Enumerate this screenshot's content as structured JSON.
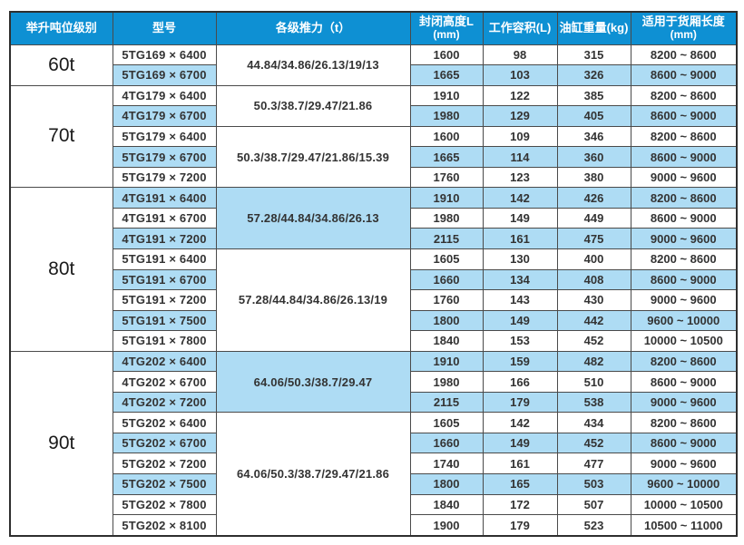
{
  "colors": {
    "header_bg": "#0e90d3",
    "row_highlight": "#aedcf4",
    "border": "#4a4a4a",
    "text": "#333333"
  },
  "table": {
    "headers": [
      {
        "label": "举升吨位级别",
        "sub": ""
      },
      {
        "label": "型号",
        "sub": ""
      },
      {
        "label": "各级推力（t）",
        "sub": ""
      },
      {
        "label": "封闭高度L",
        "sub": "(mm)"
      },
      {
        "label": "工作容积(L)",
        "sub": ""
      },
      {
        "label": "油缸重量(kg)",
        "sub": ""
      },
      {
        "label": "适用于货厢长度",
        "sub": "(mm)"
      }
    ],
    "groups": [
      {
        "tonnage": "60t",
        "subgroups": [
          {
            "thrust": "44.84/34.86/26.13/19/13",
            "thrust_shaded": false,
            "rows": [
              {
                "model": "5TG169 × 6400",
                "closed_height": "1600",
                "volume": "98",
                "weight": "315",
                "box_length": "8200 ~ 8600",
                "shaded": false
              },
              {
                "model": "5TG169 × 6700",
                "closed_height": "1665",
                "volume": "103",
                "weight": "326",
                "box_length": "8600 ~ 9000",
                "shaded": true
              }
            ]
          }
        ]
      },
      {
        "tonnage": "70t",
        "subgroups": [
          {
            "thrust": "50.3/38.7/29.47/21.86",
            "thrust_shaded": false,
            "rows": [
              {
                "model": "4TG179 × 6400",
                "closed_height": "1910",
                "volume": "122",
                "weight": "385",
                "box_length": "8200 ~ 8600",
                "shaded": false
              },
              {
                "model": "4TG179 × 6700",
                "closed_height": "1980",
                "volume": "129",
                "weight": "405",
                "box_length": "8600 ~ 9000",
                "shaded": true
              }
            ]
          },
          {
            "thrust": "50.3/38.7/29.47/21.86/15.39",
            "thrust_shaded": false,
            "rows": [
              {
                "model": "5TG179 × 6400",
                "closed_height": "1600",
                "volume": "109",
                "weight": "346",
                "box_length": "8200 ~ 8600",
                "shaded": false
              },
              {
                "model": "5TG179 × 6700",
                "closed_height": "1665",
                "volume": "114",
                "weight": "360",
                "box_length": "8600 ~ 9000",
                "shaded": true
              },
              {
                "model": "5TG179 × 7200",
                "closed_height": "1760",
                "volume": "123",
                "weight": "380",
                "box_length": "9000 ~ 9600",
                "shaded": false
              }
            ]
          }
        ]
      },
      {
        "tonnage": "80t",
        "subgroups": [
          {
            "thrust": "57.28/44.84/34.86/26.13",
            "thrust_shaded": true,
            "rows": [
              {
                "model": "4TG191 × 6400",
                "closed_height": "1910",
                "volume": "142",
                "weight": "426",
                "box_length": "8200 ~ 8600",
                "shaded": true
              },
              {
                "model": "4TG191 × 6700",
                "closed_height": "1980",
                "volume": "149",
                "weight": "449",
                "box_length": "8600 ~ 9000",
                "shaded": false
              },
              {
                "model": "4TG191 × 7200",
                "closed_height": "2115",
                "volume": "161",
                "weight": "475",
                "box_length": "9000 ~ 9600",
                "shaded": true
              }
            ]
          },
          {
            "thrust": "57.28/44.84/34.86/26.13/19",
            "thrust_shaded": false,
            "rows": [
              {
                "model": "5TG191 × 6400",
                "closed_height": "1605",
                "volume": "130",
                "weight": "400",
                "box_length": "8200 ~ 8600",
                "shaded": false
              },
              {
                "model": "5TG191 × 6700",
                "closed_height": "1660",
                "volume": "134",
                "weight": "408",
                "box_length": "8600 ~ 9000",
                "shaded": true
              },
              {
                "model": "5TG191 × 7200",
                "closed_height": "1760",
                "volume": "143",
                "weight": "430",
                "box_length": "9000 ~ 9600",
                "shaded": false
              },
              {
                "model": "5TG191 × 7500",
                "closed_height": "1800",
                "volume": "149",
                "weight": "442",
                "box_length": "9600 ~ 10000",
                "shaded": true
              },
              {
                "model": "5TG191 × 7800",
                "closed_height": "1840",
                "volume": "153",
                "weight": "452",
                "box_length": "10000 ~ 10500",
                "shaded": false
              }
            ]
          }
        ]
      },
      {
        "tonnage": "90t",
        "subgroups": [
          {
            "thrust": "64.06/50.3/38.7/29.47",
            "thrust_shaded": true,
            "rows": [
              {
                "model": "4TG202 × 6400",
                "closed_height": "1910",
                "volume": "159",
                "weight": "482",
                "box_length": "8200 ~ 8600",
                "shaded": true
              },
              {
                "model": "4TG202 × 6700",
                "closed_height": "1980",
                "volume": "166",
                "weight": "510",
                "box_length": "8600 ~ 9000",
                "shaded": false
              },
              {
                "model": "4TG202 × 7200",
                "closed_height": "2115",
                "volume": "179",
                "weight": "538",
                "box_length": "9000 ~ 9600",
                "shaded": true
              }
            ]
          },
          {
            "thrust": "64.06/50.3/38.7/29.47/21.86",
            "thrust_shaded": false,
            "rows": [
              {
                "model": "5TG202 × 6400",
                "closed_height": "1605",
                "volume": "142",
                "weight": "434",
                "box_length": "8200 ~ 8600",
                "shaded": false
              },
              {
                "model": "5TG202 × 6700",
                "closed_height": "1660",
                "volume": "149",
                "weight": "452",
                "box_length": "8600 ~ 9000",
                "shaded": true
              },
              {
                "model": "5TG202 × 7200",
                "closed_height": "1740",
                "volume": "161",
                "weight": "477",
                "box_length": "9000 ~ 9600",
                "shaded": false
              },
              {
                "model": "5TG202 × 7500",
                "closed_height": "1800",
                "volume": "165",
                "weight": "503",
                "box_length": "9600 ~ 10000",
                "shaded": true
              },
              {
                "model": "5TG202 × 7800",
                "closed_height": "1840",
                "volume": "172",
                "weight": "507",
                "box_length": "10000 ~ 10500",
                "shaded": false
              },
              {
                "model": "5TG202 × 8100",
                "closed_height": "1900",
                "volume": "179",
                "weight": "523",
                "box_length": "10500 ~ 11000",
                "shaded": false
              }
            ]
          }
        ]
      }
    ]
  }
}
